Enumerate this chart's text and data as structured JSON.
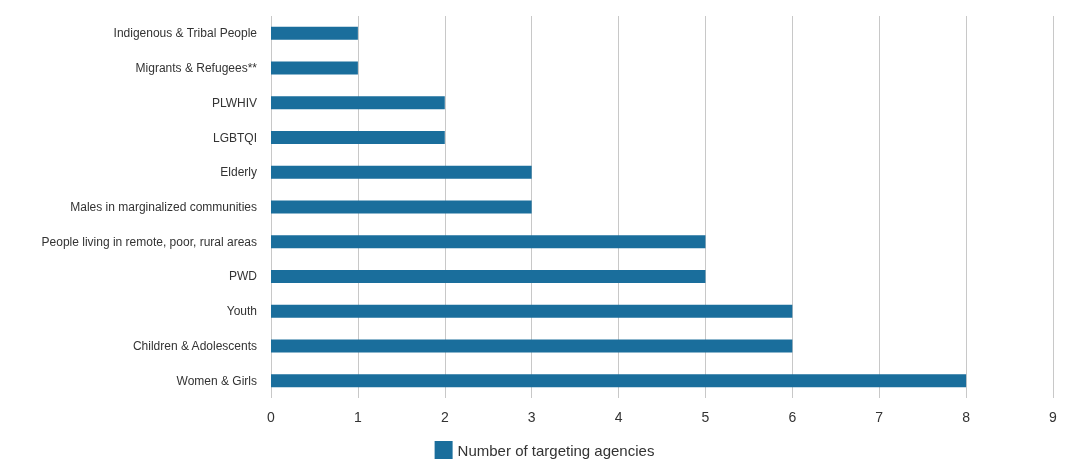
{
  "chart_data": {
    "type": "bar",
    "orientation": "horizontal",
    "categories": [
      "Indigenous & Tribal People",
      "Migrants & Refugees**",
      "PLWHIV",
      "LGBTQI",
      "Elderly",
      "Males in marginalized communities",
      "People living in remote, poor, rural areas",
      "PWD",
      "Youth",
      "Children & Adolescents",
      "Women & Girls"
    ],
    "series": [
      {
        "name": "Number of targeting agencies",
        "color": "#1a6e9c",
        "values": [
          1,
          1,
          2,
          2,
          3,
          3,
          5,
          5,
          6,
          6,
          8
        ]
      }
    ],
    "xlim": [
      0,
      9
    ],
    "xticks": [
      0,
      1,
      2,
      3,
      4,
      5,
      6,
      7,
      8,
      9
    ],
    "grid": "x",
    "legend": "bottom"
  }
}
